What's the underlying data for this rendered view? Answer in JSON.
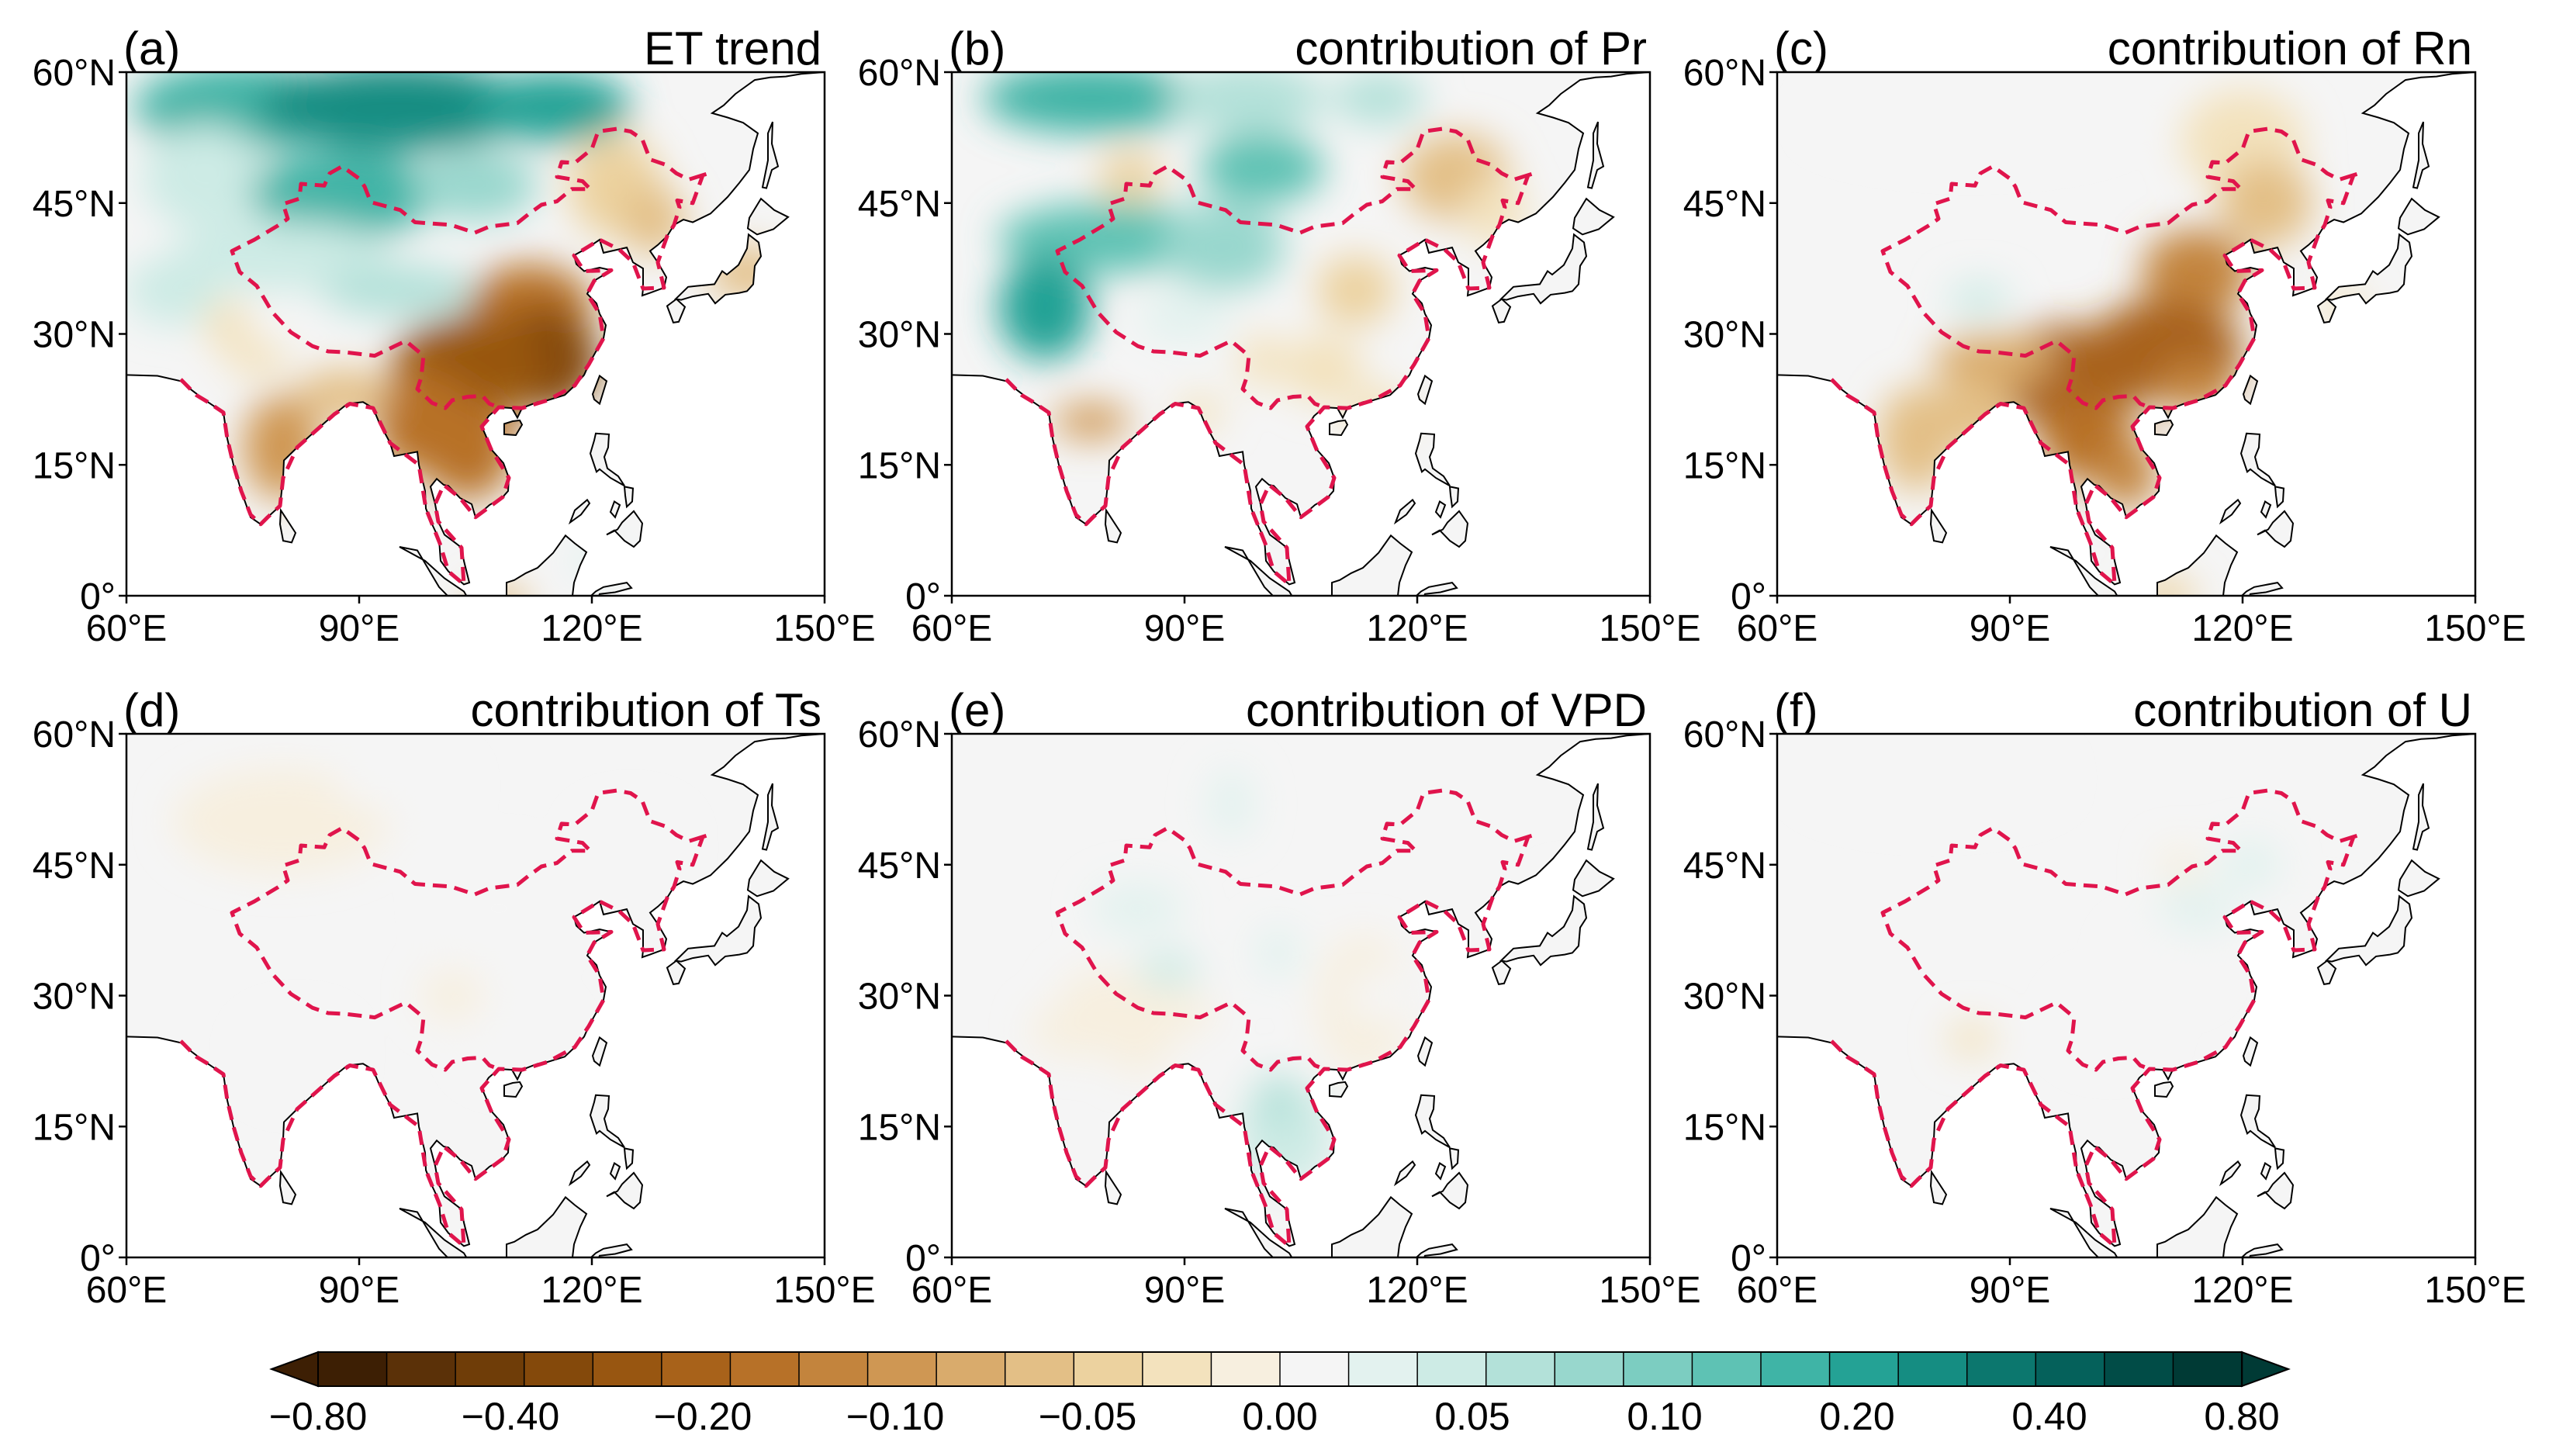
{
  "chart_data": {
    "type": "heatmap",
    "figure": "Six-panel map of East/South Asia showing ET trend and contributions of climate factors",
    "axes": {
      "x_ticks": [
        "60°E",
        "90°E",
        "120°E",
        "150°E"
      ],
      "y_ticks": [
        "60°N",
        "45°N",
        "30°N",
        "15°N",
        "0°"
      ],
      "xlim": [
        60,
        150
      ],
      "ylim": [
        0,
        60
      ]
    },
    "panels": [
      {
        "letter": "(a)",
        "title": "ET trend",
        "pattern": "et"
      },
      {
        "letter": "(b)",
        "title": "contribution of Pr",
        "pattern": "pr"
      },
      {
        "letter": "(c)",
        "title": "contribution of Rn",
        "pattern": "rn"
      },
      {
        "letter": "(d)",
        "title": "contribution of Ts",
        "pattern": "ts"
      },
      {
        "letter": "(e)",
        "title": "contribution of VPD",
        "pattern": "vpd"
      },
      {
        "letter": "(f)",
        "title": "contribution of U",
        "pattern": "u"
      }
    ],
    "colorbar": {
      "tick_labels": [
        "−0.80",
        "−0.40",
        "−0.20",
        "−0.10",
        "−0.05",
        "0.00",
        "0.05",
        "0.10",
        "0.20",
        "0.40",
        "0.80"
      ],
      "range": [
        -0.8,
        0.8
      ],
      "extend": "both",
      "colors": [
        "#3d1f04",
        "#5b3108",
        "#6f3d08",
        "#84490b",
        "#985611",
        "#a8621a",
        "#b77128",
        "#c3843d",
        "#cf9753",
        "#d9ab6c",
        "#e3bf86",
        "#ecd29f",
        "#f3e2bd",
        "#f7efdf",
        "#f5f5f5",
        "#e3f2ef",
        "#cdebe5",
        "#b3e1d9",
        "#98d7cd",
        "#7ccdc1",
        "#5ec2b4",
        "#3fb4a6",
        "#24a295",
        "#158d82",
        "#0c776e",
        "#05615b",
        "#014c47",
        "#003a35"
      ]
    },
    "boundary_color": "#e0144c"
  }
}
